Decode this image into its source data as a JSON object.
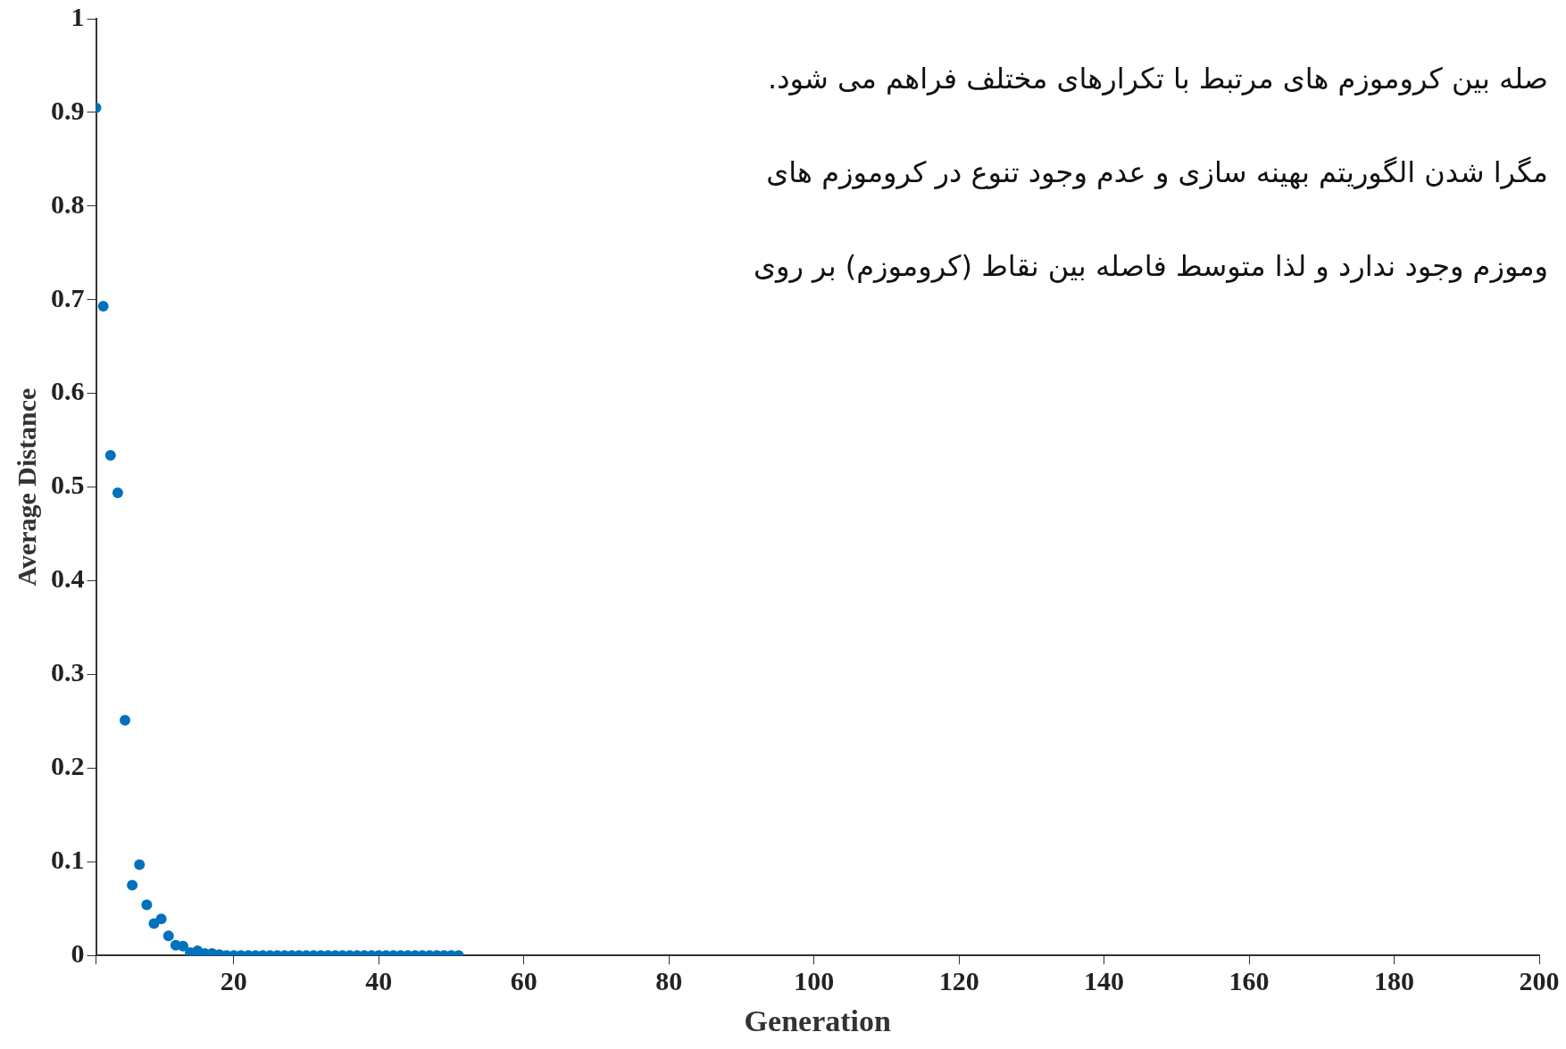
{
  "chart_data": {
    "type": "scatter",
    "xlabel": "Generation",
    "ylabel": "Average Distance",
    "annotations": [
      "صله بین کروموزم های مرتبط با تکرارهای مختلف فراهم می شود.",
      "مگرا شدن الگوریتم بهینه سازی و عدم وجود تنوع در کروموزم های",
      "وموزم وجود ندارد و لذا متوسط فاصله بین نقاط (کروموزم) بر روی"
    ],
    "x": [
      1,
      2,
      3,
      4,
      5,
      6,
      7,
      8,
      9,
      10,
      11,
      12,
      13,
      14,
      15,
      16,
      17,
      18,
      19,
      20,
      21,
      22,
      23,
      24,
      25,
      26,
      27,
      28,
      29,
      30,
      31,
      32,
      33,
      34,
      35,
      36,
      37,
      38,
      39,
      40,
      41,
      42,
      43,
      44,
      45,
      46,
      47,
      48,
      49,
      50,
      51
    ],
    "values": [
      0.905,
      0.693,
      0.534,
      0.494,
      0.251,
      0.075,
      0.097,
      0.054,
      0.034,
      0.039,
      0.021,
      0.011,
      0.01,
      0.003,
      0.005,
      0.002,
      0.002,
      0.001,
      0,
      0,
      0,
      0,
      0,
      0,
      0,
      0,
      0,
      0,
      0,
      0,
      0,
      0,
      0,
      0,
      0,
      0,
      0,
      0,
      0,
      0,
      0,
      0,
      0,
      0,
      0,
      0,
      0,
      0,
      0,
      0,
      0
    ],
    "color": "#0072bd",
    "marker": "circle",
    "xlim": [
      1,
      200
    ],
    "xticks": [
      {
        "value": 1,
        "label": null
      },
      20,
      40,
      60,
      80,
      100,
      120,
      140,
      160,
      180,
      200
    ],
    "ylim": [
      0,
      1
    ],
    "yticks": [
      0,
      0.1,
      0.2,
      0.3,
      0.4,
      0.5,
      0.6,
      0.7,
      0.8,
      0.9,
      1
    ],
    "grid": false,
    "legend": false
  }
}
